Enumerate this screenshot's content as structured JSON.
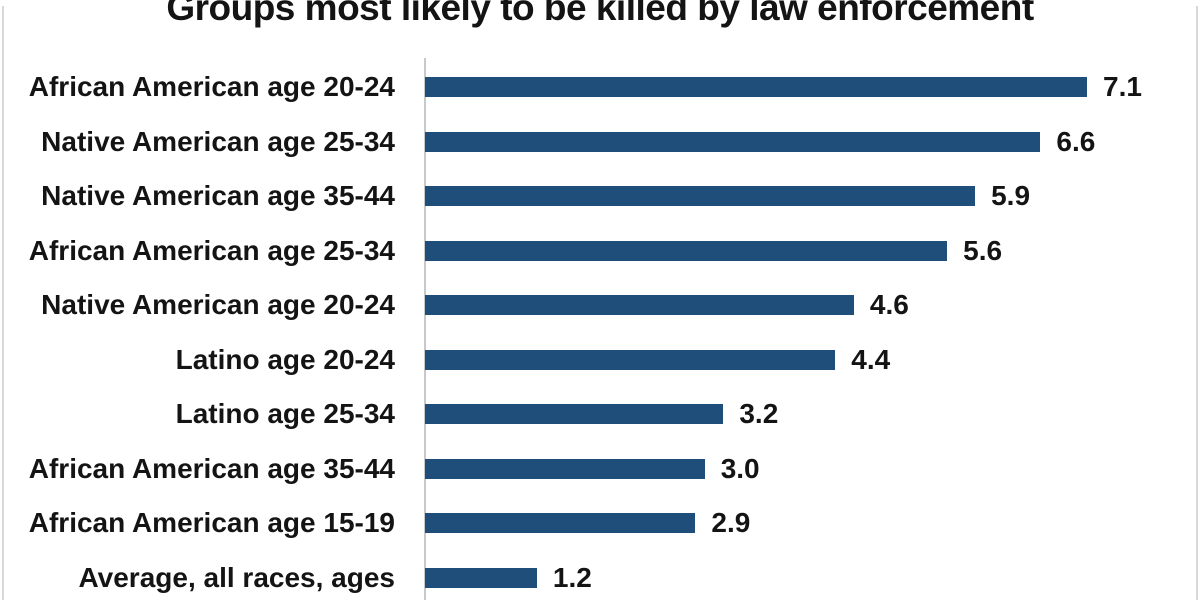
{
  "title": "Groups most likely to be killed by law enforcement",
  "chart_data": {
    "type": "bar",
    "orientation": "horizontal",
    "title": "Groups most likely to be killed by law enforcement",
    "categories": [
      "African American age 20-24",
      "Native American age 25-34",
      "Native American age 35-44",
      "African American age 25-34",
      "Native American age 20-24",
      "Latino age 20-24",
      "Latino age 25-34",
      "African American age 35-44",
      "African American age 15-19",
      "Average, all races, ages"
    ],
    "values": [
      7.1,
      6.6,
      5.9,
      5.6,
      4.6,
      4.4,
      3.2,
      3.0,
      2.9,
      1.2
    ],
    "value_labels": [
      "7.1",
      "6.6",
      "5.9",
      "5.6",
      "4.6",
      "4.4",
      "3.2",
      "3.0",
      "2.9",
      "1.2"
    ],
    "xlabel": "",
    "ylabel": "",
    "xlim": [
      0,
      7.6
    ],
    "grid": false,
    "legend": false,
    "data_labels": "outside-end",
    "bar_color": "#1f4e7a",
    "axis_line_color": "#c9c9c9",
    "frame_border_color": "#d9d9d9",
    "text_color": "#141414",
    "background_color": "#ffffff"
  }
}
